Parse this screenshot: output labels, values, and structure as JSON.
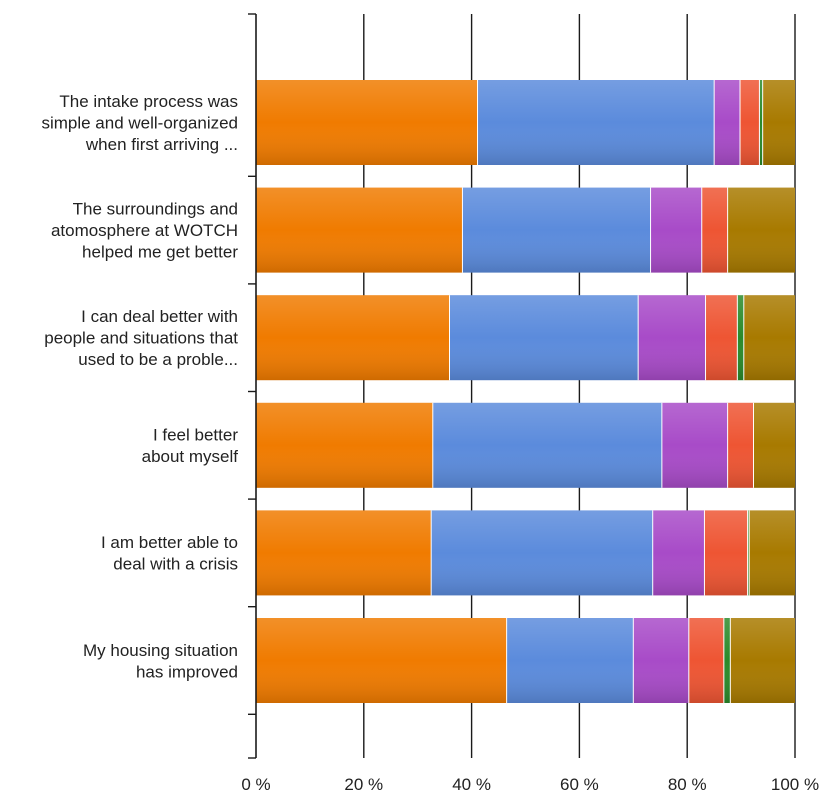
{
  "chart_data": {
    "type": "bar",
    "orientation": "horizontal",
    "stacked": true,
    "percent": true,
    "categories": [
      [
        "The intake process was",
        "simple and well-organized",
        "when first arriving ..."
      ],
      [
        "The surroundings and",
        "atomosphere at WOTCH",
        "helped me get better"
      ],
      [
        "I can deal better with",
        "people and situations that",
        "used to be a proble..."
      ],
      [
        "I feel better",
        "about myself"
      ],
      [
        "I am better able to",
        "deal with a crisis"
      ],
      [
        "My housing situation",
        "has improved"
      ]
    ],
    "series": [
      {
        "color": "#F07B00",
        "values": [
          41.1,
          38.3,
          35.9,
          32.8,
          32.5,
          46.5
        ]
      },
      {
        "color": "#5B8BDC",
        "values": [
          43.9,
          34.9,
          35.0,
          42.5,
          41.1,
          23.5
        ]
      },
      {
        "color": "#A84BC8",
        "values": [
          4.8,
          9.5,
          12.5,
          12.2,
          9.6,
          10.3
        ]
      },
      {
        "color": "#EE5533",
        "values": [
          3.6,
          4.8,
          5.9,
          4.8,
          8.0,
          6.5
        ]
      },
      {
        "color": "#2A8A2A",
        "values": [
          0.6,
          0.0,
          1.2,
          0.0,
          0.3,
          1.2
        ]
      },
      {
        "color": "#A87A00",
        "values": [
          6.0,
          12.5,
          9.5,
          7.7,
          8.5,
          12.0
        ]
      }
    ],
    "xticks": [
      "0 %",
      "20 %",
      "40 %",
      "60 %",
      "80 %",
      "100 %"
    ],
    "xlim": [
      0,
      100
    ],
    "grid": true,
    "legend": "none"
  }
}
